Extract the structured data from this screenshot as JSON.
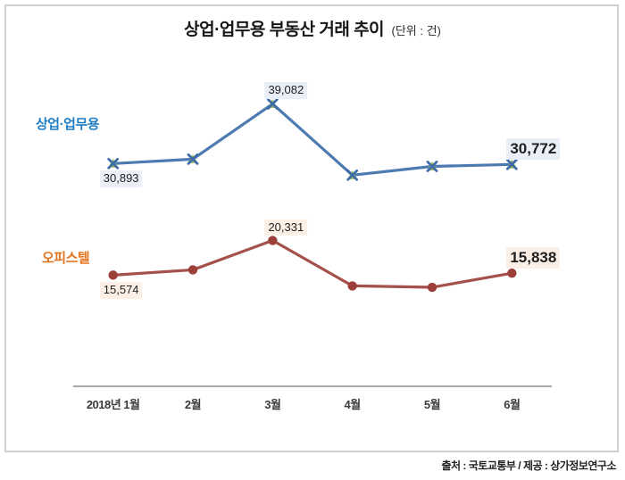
{
  "title": {
    "main": "상업·업무용 부동산 거래 추이",
    "unit": "(단위 : 건)"
  },
  "source": "출처 : 국토교통부 / 제공 : 상가정보연구소",
  "chart_data": {
    "type": "line",
    "categories": [
      "2018년 1월",
      "2월",
      "3월",
      "4월",
      "5월",
      "6월"
    ],
    "series": [
      {
        "name": "상업·업무용",
        "name_color": "#1d7dc4",
        "line_color": "#4d7ab0",
        "marker": "x-triangle",
        "marker_color": "#3e6ca8",
        "marker_accent": "#9bbb59",
        "label_bg": "#eaeff7",
        "values": [
          30893,
          31500,
          39082,
          29300,
          30500,
          30772
        ],
        "labels": [
          {
            "index": 0,
            "text": "30,893",
            "pos": "below",
            "emphasis": false
          },
          {
            "index": 2,
            "text": "39,082",
            "pos": "above",
            "emphasis": false
          },
          {
            "index": 5,
            "text": "30,772",
            "pos": "above",
            "emphasis": true
          }
        ]
      },
      {
        "name": "오피스텔",
        "name_color": "#e5751e",
        "line_color": "#a4504b",
        "marker": "circle",
        "marker_color": "#9c3f38",
        "marker_accent": "#9c3f38",
        "label_bg": "#fcefe6",
        "values": [
          15574,
          16300,
          20331,
          14100,
          13900,
          15838
        ],
        "labels": [
          {
            "index": 0,
            "text": "15,574",
            "pos": "below",
            "emphasis": false
          },
          {
            "index": 2,
            "text": "20,331",
            "pos": "above",
            "emphasis": false
          },
          {
            "index": 5,
            "text": "15,838",
            "pos": "above",
            "emphasis": true
          }
        ]
      }
    ],
    "xlabel": "",
    "ylabel": "",
    "ylim": [
      0,
      53000
    ],
    "grid": false,
    "legend_position": "inline-series-names-left",
    "note": "values at indices 1, 3, 4 of each series are estimated from pixel positions (unlabeled in source image)"
  }
}
